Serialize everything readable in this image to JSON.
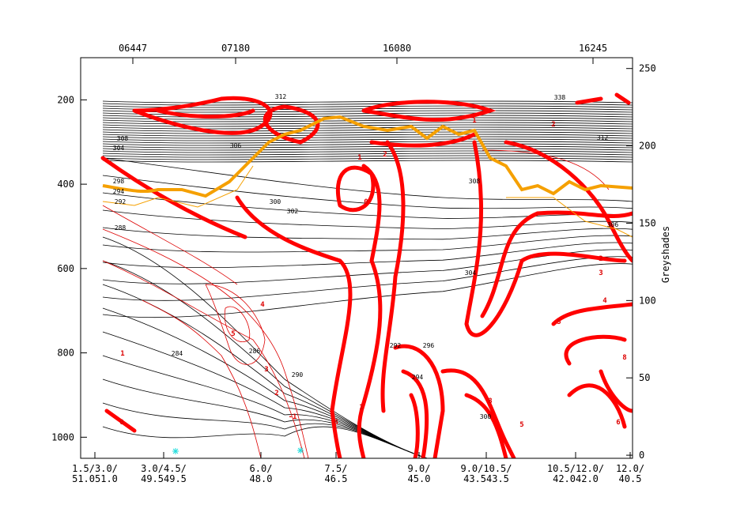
{
  "chart_data": {
    "type": "cross-section",
    "ylim": [
      1050,
      100
    ],
    "yticks": [
      200,
      400,
      600,
      800,
      1000
    ],
    "y2lim": [
      -2,
      257
    ],
    "y2ticks": [
      0,
      50,
      100,
      150,
      200,
      250
    ],
    "y2_label": "Greyshades",
    "stations": [
      "06447",
      "07180",
      "16080",
      "16245"
    ],
    "x_labels": [
      [
        "1.5/3.0/",
        "51.051.0"
      ],
      [
        "3.0/4.5/",
        "49.549.5"
      ],
      [
        "6.0/",
        "48.0"
      ],
      [
        "7.5/",
        "46.5"
      ],
      [
        "9.0/",
        "45.0"
      ],
      [
        "9.0/10.5/",
        "43.543.5"
      ],
      [
        "10.5/12.0/",
        "42.042.0"
      ],
      [
        "12.0/",
        "40.5"
      ]
    ],
    "contour_labels": {
      "black": [
        "288",
        "292",
        "294",
        "298",
        "304",
        "306",
        "308",
        "312",
        "302",
        "300",
        "304",
        "306",
        "308",
        "284",
        "286",
        "290",
        "292",
        "294",
        "296",
        "300",
        "338",
        "312"
      ],
      "red": [
        "0",
        "1",
        "2",
        "4",
        "5",
        "3",
        "2",
        "1",
        "-1",
        "0",
        "6",
        "1",
        "8",
        "5",
        "5",
        "4",
        "3",
        "2",
        "8",
        "6",
        "1",
        "2"
      ]
    }
  }
}
